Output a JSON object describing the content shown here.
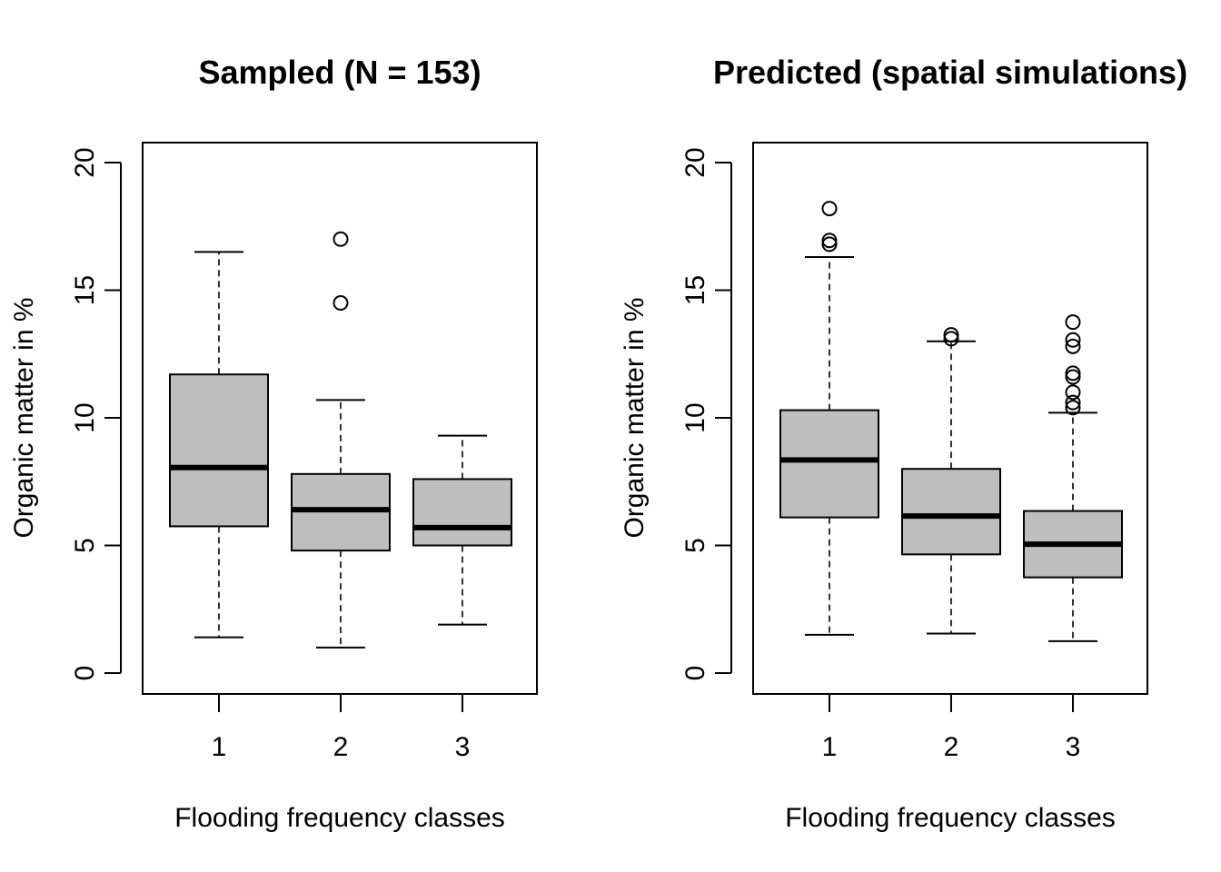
{
  "chart_data": [
    {
      "type": "boxplot",
      "title": "Sampled (N = 153)",
      "xlabel": "Flooding frequency classes",
      "ylabel": "Organic matter in %",
      "categories": [
        "1",
        "2",
        "3"
      ],
      "ylim": [
        0,
        20
      ],
      "yticks": [
        0,
        5,
        10,
        15,
        20
      ],
      "box_fill": "#bebebe",
      "boxes": [
        {
          "category": "1",
          "whisker_low": 1.4,
          "q1": 5.75,
          "median": 8.05,
          "q3": 11.7,
          "whisker_high": 16.5,
          "outliers": []
        },
        {
          "category": "2",
          "whisker_low": 1.0,
          "q1": 4.8,
          "median": 6.4,
          "q3": 7.8,
          "whisker_high": 10.7,
          "outliers": [
            14.5,
            17.0
          ]
        },
        {
          "category": "3",
          "whisker_low": 1.9,
          "q1": 5.0,
          "median": 5.7,
          "q3": 7.6,
          "whisker_high": 9.3,
          "outliers": []
        }
      ]
    },
    {
      "type": "boxplot",
      "title": "Predicted (spatial simulations)",
      "xlabel": "Flooding frequency classes",
      "ylabel": "Organic matter in %",
      "categories": [
        "1",
        "2",
        "3"
      ],
      "ylim": [
        0,
        20
      ],
      "yticks": [
        0,
        5,
        10,
        15,
        20
      ],
      "box_fill": "#bebebe",
      "boxes": [
        {
          "category": "1",
          "whisker_low": 1.5,
          "q1": 6.1,
          "median": 8.35,
          "q3": 10.3,
          "whisker_high": 16.3,
          "outliers": [
            16.8,
            16.95,
            18.2
          ]
        },
        {
          "category": "2",
          "whisker_low": 1.55,
          "q1": 4.65,
          "median": 6.15,
          "q3": 8.0,
          "whisker_high": 13.0,
          "outliers": [
            13.1,
            13.25
          ]
        },
        {
          "category": "3",
          "whisker_low": 1.25,
          "q1": 3.75,
          "median": 5.05,
          "q3": 6.35,
          "whisker_high": 10.2,
          "outliers": [
            10.4,
            10.6,
            11.0,
            11.6,
            11.75,
            12.8,
            13.05,
            13.75
          ]
        }
      ]
    }
  ]
}
